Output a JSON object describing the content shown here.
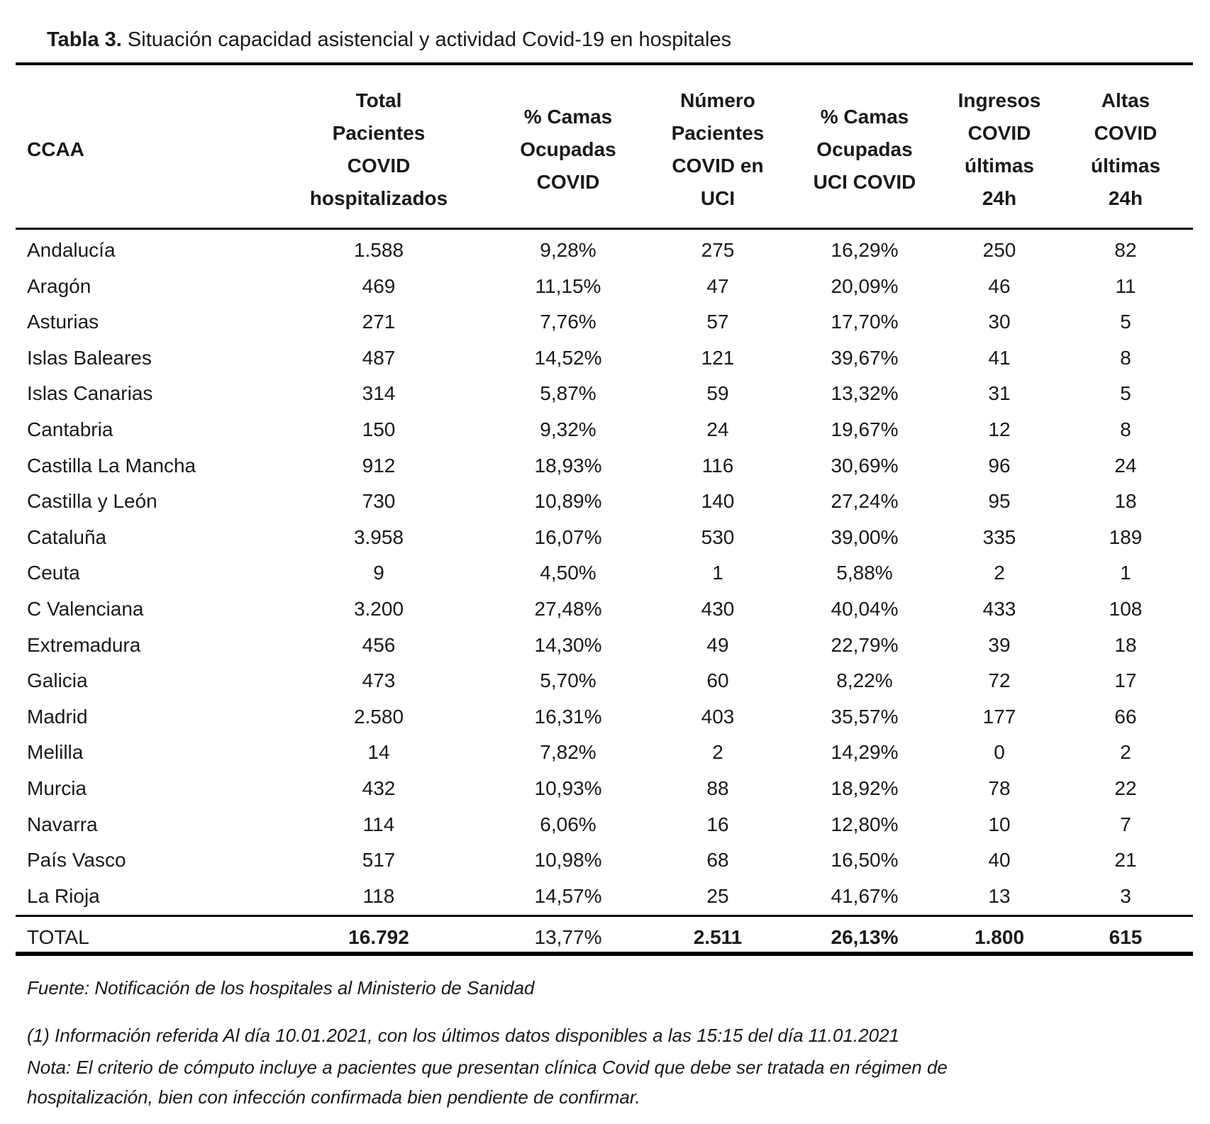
{
  "title": {
    "label": "Tabla 3.",
    "text": "Situación capacidad asistencial y actividad Covid-19 en hospitales"
  },
  "columns": [
    [
      "CCAA"
    ],
    [
      "Total Pacientes",
      "COVID",
      "hospitalizados"
    ],
    [
      "% Camas",
      "Ocupadas",
      "COVID"
    ],
    [
      "Número",
      "Pacientes",
      "COVID en",
      "UCI"
    ],
    [
      "% Camas",
      "Ocupadas",
      "UCI COVID"
    ],
    [
      "Ingresos",
      "COVID",
      "últimas",
      "24h"
    ],
    [
      "Altas",
      "COVID",
      "últimas",
      "24h"
    ]
  ],
  "rows": [
    [
      "Andalucía",
      "1.588",
      "9,28%",
      "275",
      "16,29%",
      "250",
      "82"
    ],
    [
      "Aragón",
      "469",
      "11,15%",
      "47",
      "20,09%",
      "46",
      "11"
    ],
    [
      "Asturias",
      "271",
      "7,76%",
      "57",
      "17,70%",
      "30",
      "5"
    ],
    [
      "Islas Baleares",
      "487",
      "14,52%",
      "121",
      "39,67%",
      "41",
      "8"
    ],
    [
      "Islas Canarias",
      "314",
      "5,87%",
      "59",
      "13,32%",
      "31",
      "5"
    ],
    [
      "Cantabria",
      "150",
      "9,32%",
      "24",
      "19,67%",
      "12",
      "8"
    ],
    [
      "Castilla La Mancha",
      "912",
      "18,93%",
      "116",
      "30,69%",
      "96",
      "24"
    ],
    [
      "Castilla y León",
      "730",
      "10,89%",
      "140",
      "27,24%",
      "95",
      "18"
    ],
    [
      "Cataluña",
      "3.958",
      "16,07%",
      "530",
      "39,00%",
      "335",
      "189"
    ],
    [
      "Ceuta",
      "9",
      "4,50%",
      "1",
      "5,88%",
      "2",
      "1"
    ],
    [
      "C Valenciana",
      "3.200",
      "27,48%",
      "430",
      "40,04%",
      "433",
      "108"
    ],
    [
      "Extremadura",
      "456",
      "14,30%",
      "49",
      "22,79%",
      "39",
      "18"
    ],
    [
      "Galicia",
      "473",
      "5,70%",
      "60",
      "8,22%",
      "72",
      "17"
    ],
    [
      "Madrid",
      "2.580",
      "16,31%",
      "403",
      "35,57%",
      "177",
      "66"
    ],
    [
      "Melilla",
      "14",
      "7,82%",
      "2",
      "14,29%",
      "0",
      "2"
    ],
    [
      "Murcia",
      "432",
      "10,93%",
      "88",
      "18,92%",
      "78",
      "22"
    ],
    [
      "Navarra",
      "114",
      "6,06%",
      "16",
      "12,80%",
      "10",
      "7"
    ],
    [
      "País Vasco",
      "517",
      "10,98%",
      "68",
      "16,50%",
      "40",
      "21"
    ],
    [
      "La Rioja",
      "118",
      "14,57%",
      "25",
      "41,67%",
      "13",
      "3"
    ]
  ],
  "total": [
    "TOTAL",
    "16.792",
    "13,77%",
    "2.511",
    "26,13%",
    "1.800",
    "615"
  ],
  "notes": {
    "source": "Fuente: Notificación de los hospitales al Ministerio de Sanidad",
    "footnote1": "(1) Información referida Al día 10.01.2021, con los últimos datos disponibles a las 15:15 del día 11.01.2021",
    "nota_line1": "Nota:  El criterio de cómputo incluye a pacientes que presentan clínica Covid que debe ser tratada en régimen de",
    "nota_line2": "hospitalización, bien con infección confirmada bien pendiente de confirmar."
  }
}
